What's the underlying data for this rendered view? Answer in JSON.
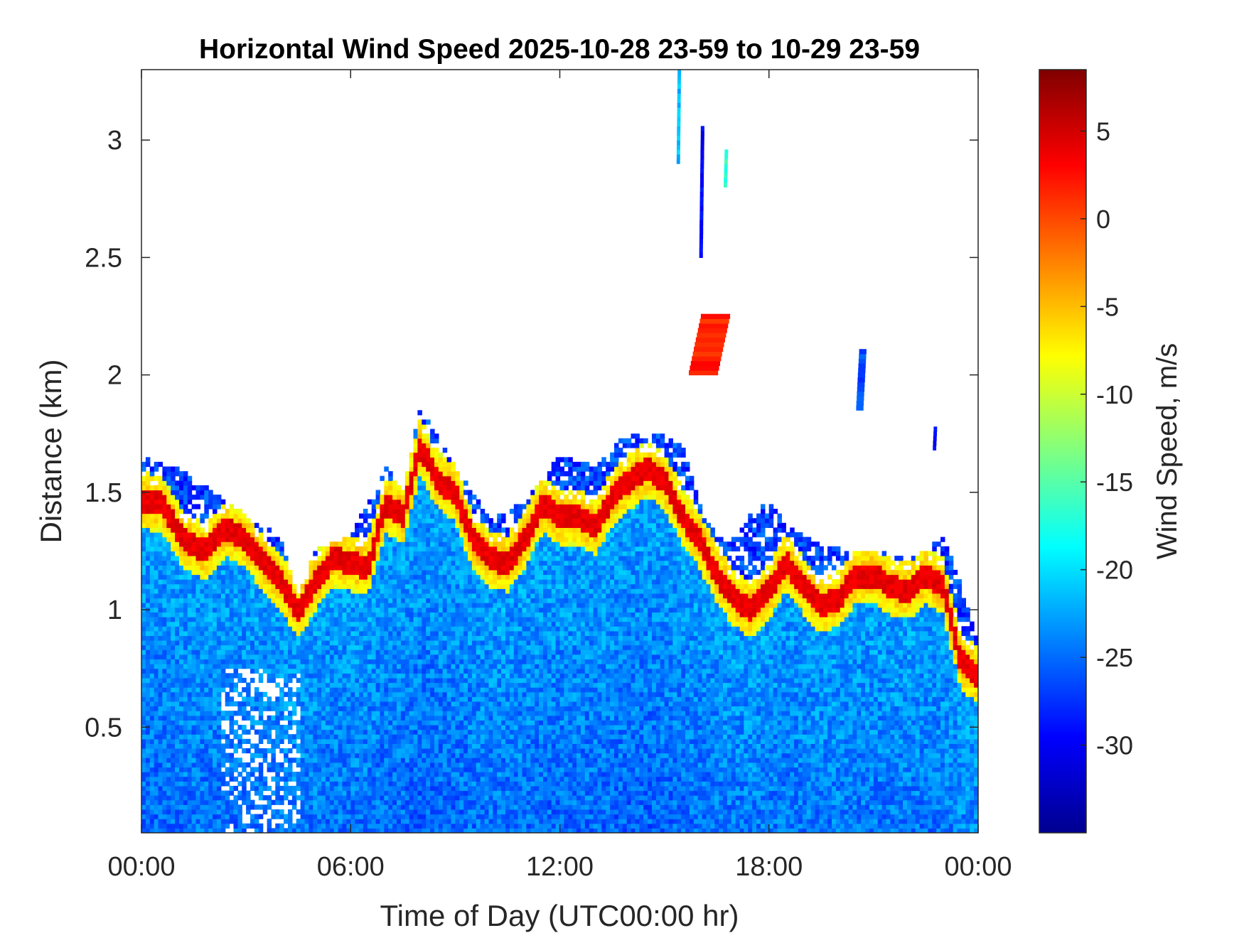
{
  "chart_data": {
    "type": "heatmap",
    "title": "Horizontal Wind Speed 2025-10-28 23-59 to 10-29 23-59",
    "xlabel": "Time of Day (UTC00:00 hr)",
    "ylabel": "Distance (km)",
    "x_range_hours": [
      0,
      24
    ],
    "ylim": [
      0.05,
      3.3
    ],
    "x_ticks": [
      {
        "hour": 0,
        "label": "00:00"
      },
      {
        "hour": 6,
        "label": "06:00"
      },
      {
        "hour": 12,
        "label": "12:00"
      },
      {
        "hour": 18,
        "label": "18:00"
      },
      {
        "hour": 24,
        "label": "00:00"
      }
    ],
    "y_ticks": [
      {
        "value": 0.5,
        "label": "0.5"
      },
      {
        "value": 1,
        "label": "1"
      },
      {
        "value": 1.5,
        "label": "1.5"
      },
      {
        "value": 2,
        "label": "2"
      },
      {
        "value": 2.5,
        "label": "2.5"
      },
      {
        "value": 3,
        "label": "3"
      }
    ],
    "colorbar": {
      "label": "Wind Speed, m/s",
      "colormap": "jet",
      "range": [
        -35,
        8.5
      ],
      "ticks": [
        {
          "value": 5,
          "label": "5"
        },
        {
          "value": 0,
          "label": "0"
        },
        {
          "value": -5,
          "label": "-5"
        },
        {
          "value": -10,
          "label": "-10"
        },
        {
          "value": -15,
          "label": "-15"
        },
        {
          "value": -20,
          "label": "-20"
        },
        {
          "value": -25,
          "label": "-25"
        },
        {
          "value": -30,
          "label": "-30"
        }
      ]
    },
    "grid": false,
    "jet_core_height_km": {
      "hours": [
        0,
        0.6,
        1.2,
        1.8,
        2.4,
        3,
        3.5,
        4,
        4.5,
        5,
        5.5,
        6,
        6.5,
        7,
        7.5,
        8,
        8.5,
        9,
        9.5,
        10,
        10.5,
        11,
        11.5,
        12,
        12.5,
        13,
        13.5,
        14,
        14.5,
        15,
        15.5,
        16,
        16.5,
        17,
        17.5,
        18,
        18.5,
        19,
        19.5,
        20,
        20.5,
        21,
        21.5,
        22,
        22.5,
        23,
        23.5,
        24
      ],
      "heights": [
        1.47,
        1.45,
        1.3,
        1.25,
        1.35,
        1.3,
        1.2,
        1.12,
        1.0,
        1.12,
        1.22,
        1.2,
        1.18,
        1.45,
        1.4,
        1.7,
        1.55,
        1.5,
        1.3,
        1.22,
        1.2,
        1.3,
        1.45,
        1.4,
        1.4,
        1.35,
        1.48,
        1.55,
        1.6,
        1.55,
        1.4,
        1.3,
        1.15,
        1.05,
        1.0,
        1.08,
        1.2,
        1.1,
        1.02,
        1.05,
        1.15,
        1.15,
        1.1,
        1.08,
        1.15,
        1.1,
        0.78,
        0.72
      ],
      "speed_m_s": 5
    },
    "data_top_km": {
      "hours": [
        0,
        1,
        2,
        3,
        4,
        4.5,
        5,
        6,
        7,
        7.5,
        8,
        9,
        10,
        11,
        12,
        13,
        14,
        14.5,
        15,
        15.5,
        16,
        16.5,
        17,
        17.5,
        18,
        18.5,
        19,
        20,
        21,
        22,
        23,
        23.5,
        24
      ],
      "heights": [
        1.65,
        1.6,
        1.5,
        1.4,
        1.3,
        1.05,
        1.25,
        1.3,
        1.6,
        1.5,
        1.85,
        1.6,
        1.38,
        1.45,
        1.65,
        1.6,
        1.75,
        1.72,
        1.75,
        1.7,
        1.45,
        1.3,
        1.3,
        1.4,
        1.45,
        1.35,
        1.3,
        1.25,
        1.25,
        1.2,
        1.3,
        1.1,
        0.85
      ]
    },
    "upper_features": [
      {
        "hour_start": 15.35,
        "hour_end": 15.45,
        "height_start": 2.9,
        "height_end": 3.3,
        "speed_m_s": -20
      },
      {
        "hour_start": 16.0,
        "hour_end": 16.15,
        "height_start": 2.5,
        "height_end": 3.05,
        "speed_m_s": -28
      },
      {
        "hour_start": 16.7,
        "hour_end": 16.8,
        "height_start": 2.8,
        "height_end": 2.95,
        "speed_m_s": -15
      },
      {
        "hour_start": 15.7,
        "hour_end": 16.9,
        "height_start": 2.0,
        "height_end": 2.25,
        "speed_m_s": 3
      },
      {
        "hour_start": 20.5,
        "hour_end": 20.8,
        "height_start": 1.85,
        "height_end": 2.1,
        "speed_m_s": -25
      },
      {
        "hour_start": 22.7,
        "hour_end": 22.8,
        "height_start": 1.68,
        "height_end": 1.78,
        "speed_m_s": -28
      }
    ]
  }
}
